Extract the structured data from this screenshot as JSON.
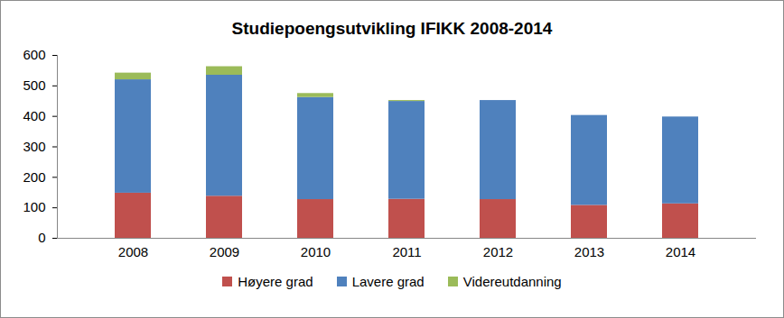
{
  "chart_data": {
    "type": "bar",
    "title": "Studiepoengsutvikling IFIKK 2008-2014",
    "categories": [
      "2008",
      "2009",
      "2010",
      "2011",
      "2012",
      "2013",
      "2014"
    ],
    "series": [
      {
        "name": "Høyere grad",
        "color": "#C0504D",
        "values": [
          148,
          138,
          127,
          128,
          127,
          108,
          113
        ]
      },
      {
        "name": "Lavere grad",
        "color": "#4F81BD",
        "values": [
          372,
          397,
          335,
          321,
          325,
          295,
          285
        ]
      },
      {
        "name": "Videreutdanning",
        "color": "#9BBB59",
        "values": [
          22,
          28,
          13,
          3,
          0,
          0,
          0
        ]
      }
    ],
    "stacked": true,
    "ylim": [
      0,
      600
    ],
    "yticks": [
      0,
      100,
      200,
      300,
      400,
      500,
      600
    ],
    "grid": false,
    "legend": "bottom"
  }
}
